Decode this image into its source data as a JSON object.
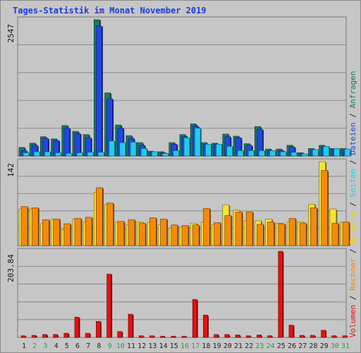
{
  "title": "Tages-Statistik im Monat November 2019",
  "chart_data": [
    {
      "type": "bar",
      "max_label": "2547",
      "ylim": [
        0,
        2547
      ],
      "categories": [
        "1",
        "2",
        "3",
        "4",
        "5",
        "6",
        "7",
        "8",
        "9",
        "10",
        "11",
        "12",
        "13",
        "14",
        "15",
        "16",
        "17",
        "18",
        "19",
        "20",
        "21",
        "22",
        "23",
        "24",
        "25",
        "26",
        "27",
        "28",
        "29",
        "30",
        "31"
      ],
      "weekend_days": [
        "2",
        "3",
        "9",
        "10",
        "16",
        "17",
        "23",
        "24",
        "30",
        "31"
      ],
      "series": [
        {
          "name": "Anfragen",
          "color": "#1a7a5a",
          "values": [
            160,
            240,
            360,
            320,
            570,
            460,
            400,
            2547,
            1180,
            580,
            380,
            250,
            90,
            80,
            250,
            400,
            600,
            250,
            240,
            410,
            370,
            230,
            550,
            130,
            130,
            200,
            60,
            140,
            200,
            140,
            140
          ]
        },
        {
          "name": "Dateien",
          "color": "#1f48e0",
          "values": [
            100,
            200,
            330,
            290,
            520,
            420,
            340,
            2430,
            1070,
            520,
            330,
            200,
            70,
            60,
            220,
            360,
            560,
            220,
            220,
            360,
            340,
            200,
            500,
            100,
            100,
            170,
            40,
            110,
            180,
            120,
            110
          ]
        },
        {
          "name": "Seiten",
          "color": "#22ccee",
          "values": [
            60,
            80,
            80,
            60,
            50,
            60,
            70,
            70,
            280,
            250,
            260,
            140,
            80,
            50,
            100,
            340,
            520,
            220,
            220,
            180,
            100,
            100,
            100,
            100,
            80,
            70,
            40,
            120,
            180,
            140,
            130
          ]
        }
      ]
    },
    {
      "type": "bar",
      "max_label": "142",
      "ylim": [
        0,
        142
      ],
      "categories": [
        "1",
        "2",
        "3",
        "4",
        "5",
        "6",
        "7",
        "8",
        "9",
        "10",
        "11",
        "12",
        "13",
        "14",
        "15",
        "16",
        "17",
        "18",
        "19",
        "20",
        "21",
        "22",
        "23",
        "24",
        "25",
        "26",
        "27",
        "28",
        "29",
        "30",
        "31"
      ],
      "weekend_days": [
        "2",
        "3",
        "9",
        "10",
        "16",
        "17",
        "23",
        "24",
        "30",
        "31"
      ],
      "series": [
        {
          "name": "Besuche",
          "color": "#f5e430",
          "values": [
            62,
            62,
            37,
            45,
            27,
            45,
            40,
            90,
            70,
            40,
            35,
            40,
            40,
            35,
            30,
            32,
            38,
            40,
            35,
            69,
            60,
            42,
            42,
            45,
            38,
            40,
            40,
            70,
            142,
            62,
            40
          ]
        },
        {
          "name": "Rechner",
          "color": "#f38a0e",
          "values": [
            66,
            64,
            44,
            45,
            37,
            46,
            48,
            98,
            72,
            41,
            44,
            38,
            47,
            45,
            35,
            34,
            35,
            63,
            39,
            51,
            57,
            57,
            36,
            40,
            37,
            46,
            38,
            64,
            127,
            38,
            40
          ]
        }
      ]
    },
    {
      "type": "bar",
      "max_label": "203.84",
      "ylim": [
        0,
        203.84
      ],
      "categories": [
        "1",
        "2",
        "3",
        "4",
        "5",
        "6",
        "7",
        "8",
        "9",
        "10",
        "11",
        "12",
        "13",
        "14",
        "15",
        "16",
        "17",
        "18",
        "19",
        "20",
        "21",
        "22",
        "23",
        "24",
        "25",
        "26",
        "27",
        "28",
        "29",
        "30",
        "31"
      ],
      "weekend_days": [
        "2",
        "3",
        "9",
        "10",
        "16",
        "17",
        "23",
        "24",
        "30",
        "31"
      ],
      "series": [
        {
          "name": "Volumen",
          "color": "#e81010",
          "values": [
            4,
            5,
            7,
            7,
            10,
            48,
            10,
            38,
            150,
            14,
            55,
            4,
            4,
            3,
            3,
            3,
            90,
            53,
            7,
            7,
            6,
            4,
            6,
            4,
            203.84,
            29,
            5,
            5,
            17,
            4,
            4
          ]
        }
      ]
    }
  ],
  "legend": [
    "Volumen",
    "/",
    "Rechner",
    "/",
    "Besuche",
    "/",
    "Seiten",
    "/",
    "Dateien",
    "/",
    "Anfragen"
  ],
  "colors": {
    "weekday_label": "#222222",
    "weekend_label": "#21a24a",
    "title": "#1f3bd6",
    "panel_bg": "#c6c6c6",
    "grid": "#8a8a8a"
  }
}
